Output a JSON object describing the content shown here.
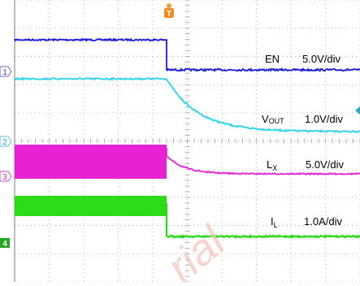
{
  "chart_data": {
    "type": "line",
    "title": "",
    "xlabel": "",
    "ylabel": "",
    "grid": true,
    "trigger_marker": "T",
    "markers": [
      "1",
      "2",
      "3",
      "4"
    ],
    "series": [
      {
        "name": "EN",
        "scale": "5.0V/div",
        "color": "#1a1adc",
        "before": 2.4,
        "after": 1.5,
        "transition": "step",
        "noise": 0.08
      },
      {
        "name": "VOUT",
        "scale": "1.0V/div",
        "color": "#2ed4ee",
        "before": 2.95,
        "after": 0.0,
        "transition": "decay",
        "noise": 0.04
      },
      {
        "name": "LX",
        "scale": "5.0V/div",
        "color": "#e822d4",
        "before_low": 0.0,
        "before_high": 1.3,
        "after": 0.0,
        "transition": "ring",
        "noise": 0.05
      },
      {
        "name": "IL",
        "scale": "1.0A/div",
        "color": "#2bdc16",
        "before": 1.25,
        "after": 0.05,
        "transition": "step",
        "noise": 0.22
      }
    ],
    "step_position": 0.44,
    "watermark": "rial"
  },
  "labels": {
    "en_name": "EN",
    "en_scale": "5.0V/div",
    "vout_name": "V",
    "vout_sub": "OUT",
    "vout_scale": "1.0V/div",
    "lx_name": "L",
    "lx_sub": "X",
    "lx_scale": "5.0V/div",
    "il_name": "I",
    "il_sub": "L",
    "il_scale": "1.0A/div",
    "m1": "1",
    "m2": "2",
    "m3": "3",
    "m4": "4",
    "trigger": "T",
    "watermark": "rial"
  }
}
